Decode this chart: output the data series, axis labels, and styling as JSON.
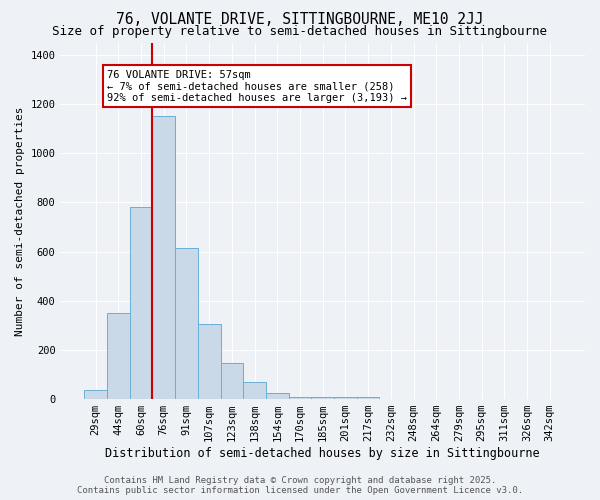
{
  "title1": "76, VOLANTE DRIVE, SITTINGBOURNE, ME10 2JJ",
  "title2": "Size of property relative to semi-detached houses in Sittingbourne",
  "xlabel": "Distribution of semi-detached houses by size in Sittingbourne",
  "ylabel": "Number of semi-detached properties",
  "categories": [
    "29sqm",
    "44sqm",
    "60sqm",
    "76sqm",
    "91sqm",
    "107sqm",
    "123sqm",
    "138sqm",
    "154sqm",
    "170sqm",
    "185sqm",
    "201sqm",
    "217sqm",
    "232sqm",
    "248sqm",
    "264sqm",
    "279sqm",
    "295sqm",
    "311sqm",
    "326sqm",
    "342sqm"
  ],
  "values": [
    35,
    350,
    780,
    1150,
    615,
    305,
    145,
    68,
    25,
    10,
    10,
    10,
    8,
    0,
    0,
    0,
    0,
    0,
    0,
    0,
    0
  ],
  "bar_color": "#c9d9e8",
  "bar_edge_color": "#6baed6",
  "red_line_x": 2.5,
  "annotation_title": "76 VOLANTE DRIVE: 57sqm",
  "annotation_line1": "← 7% of semi-detached houses are smaller (258)",
  "annotation_line2": "92% of semi-detached houses are larger (3,193) →",
  "annotation_box_color": "#ffffff",
  "annotation_border_color": "#cc0000",
  "red_line_color": "#cc0000",
  "ylim": [
    0,
    1450
  ],
  "yticks": [
    0,
    200,
    400,
    600,
    800,
    1000,
    1200,
    1400
  ],
  "background_color": "#eef2f7",
  "footer_line1": "Contains HM Land Registry data © Crown copyright and database right 2025.",
  "footer_line2": "Contains public sector information licensed under the Open Government Licence v3.0.",
  "title1_fontsize": 10.5,
  "title2_fontsize": 9,
  "xlabel_fontsize": 8.5,
  "ylabel_fontsize": 8,
  "tick_fontsize": 7.5,
  "annotation_fontsize": 7.5,
  "footer_fontsize": 6.5
}
